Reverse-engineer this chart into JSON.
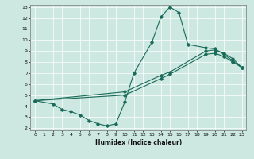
{
  "title": "",
  "xlabel": "Humidex (Indice chaleur)",
  "bg_color": "#cce8e0",
  "line_color": "#1a6b5a",
  "xlim": [
    -0.5,
    23.5
  ],
  "ylim": [
    1.8,
    13.2
  ],
  "xticks": [
    0,
    1,
    2,
    3,
    4,
    5,
    6,
    7,
    8,
    9,
    10,
    11,
    12,
    13,
    14,
    15,
    16,
    17,
    18,
    19,
    20,
    21,
    22,
    23
  ],
  "yticks": [
    2,
    3,
    4,
    5,
    6,
    7,
    8,
    9,
    10,
    11,
    12,
    13
  ],
  "curve1_x": [
    0,
    2,
    3,
    4,
    5,
    6,
    7,
    8,
    9,
    10,
    11,
    13,
    14,
    15,
    16,
    17,
    19,
    20,
    21,
    22,
    23
  ],
  "curve1_y": [
    4.5,
    4.2,
    3.7,
    3.5,
    3.2,
    2.7,
    2.4,
    2.2,
    2.4,
    4.4,
    7.0,
    9.8,
    12.1,
    13.0,
    12.5,
    9.6,
    9.3,
    9.2,
    8.7,
    8.1,
    7.5
  ],
  "curve2_x": [
    0,
    10,
    14,
    15,
    19,
    20,
    21,
    22,
    23
  ],
  "curve2_y": [
    4.5,
    5.0,
    6.5,
    6.9,
    8.7,
    8.8,
    8.5,
    8.0,
    7.5
  ],
  "curve3_x": [
    0,
    10,
    14,
    15,
    19,
    20,
    21,
    22,
    23
  ],
  "curve3_y": [
    4.5,
    5.3,
    6.8,
    7.1,
    9.0,
    9.1,
    8.8,
    8.3,
    7.5
  ],
  "figsize": [
    3.2,
    2.0
  ],
  "dpi": 100
}
